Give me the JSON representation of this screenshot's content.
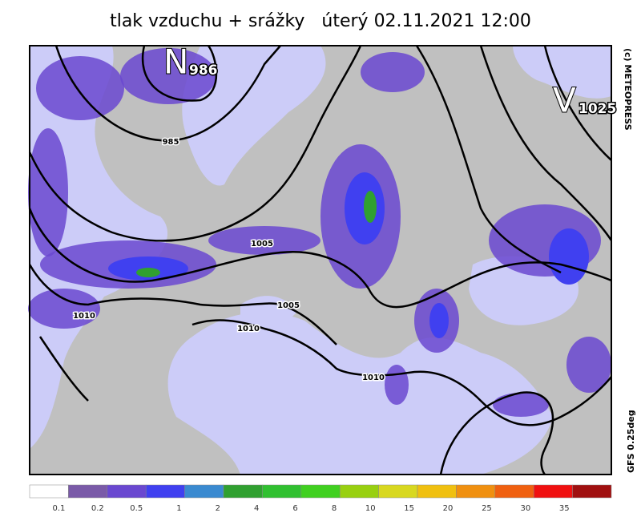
{
  "title": "tlak vzduchu + srážky   úterý 02.11.2021 12:00",
  "centers": [
    {
      "letter": "N",
      "value": 986
    },
    {
      "letter": "V",
      "value": 1025
    }
  ],
  "isobar_labels": [
    985,
    1005,
    1005,
    1010,
    1010,
    1010
  ],
  "credit": "(c) METEOPRESS",
  "model": "GFS 0.25deg",
  "legend": {
    "labels": [
      0.1,
      0.2,
      0.5,
      1,
      2,
      4,
      6,
      8,
      10,
      15,
      20,
      25,
      30,
      35
    ],
    "colors": [
      "#ffffff",
      "#7a5aa8",
      "#6a48d0",
      "#4040f0",
      "#3a8ad0",
      "#30a030",
      "#30c030",
      "#40d020",
      "#98d010",
      "#d8d820",
      "#f0c010",
      "#f09010",
      "#f06010",
      "#f01010",
      "#a01010"
    ]
  }
}
